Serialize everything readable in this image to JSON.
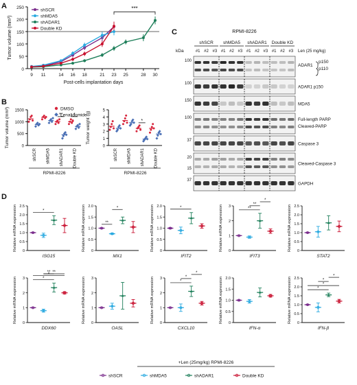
{
  "panel_labels": {
    "a": "A",
    "b": "B",
    "c": "C",
    "d": "D"
  },
  "colors": {
    "shSCR": "#7a2c8c",
    "shMDA5": "#29a9e0",
    "shADAR1": "#1e7f5a",
    "DoubleKD": "#c8102e",
    "DMSO": "#d7263d",
    "Lenalidomide": "#4a6fb5"
  },
  "chart_data": [
    {
      "id": "A",
      "type": "line",
      "xlabel": "Post-cells implantation days",
      "ylabel": "Tumor volume (mm³)",
      "ylim": [
        0,
        250
      ],
      "yticks": [
        0,
        50,
        100,
        150,
        200,
        250
      ],
      "x": [
        9,
        11,
        14,
        16,
        18,
        21,
        23,
        25,
        28,
        30
      ],
      "reference_line": 150,
      "significance": {
        "label": "***",
        "from": 23,
        "to": 30
      },
      "legend": [
        "shSCR",
        "shMDA5",
        "shADAR1",
        "Double KD"
      ],
      "series": [
        {
          "name": "shSCR",
          "key": "shSCR",
          "x": [
            9,
            11,
            14,
            16,
            18,
            21,
            23
          ],
          "y": [
            8,
            12,
            28,
            55,
            85,
            125,
            170
          ],
          "err": [
            3,
            4,
            6,
            8,
            10,
            14,
            20
          ]
        },
        {
          "name": "shMDA5",
          "key": "shMDA5",
          "x": [
            9,
            11,
            14,
            16,
            18,
            21,
            23
          ],
          "y": [
            9,
            14,
            32,
            62,
            95,
            135,
            150
          ],
          "err": [
            3,
            4,
            6,
            8,
            10,
            14,
            15
          ]
        },
        {
          "name": "shADAR1",
          "key": "shADAR1",
          "x": [
            9,
            11,
            14,
            16,
            18,
            21,
            23,
            25,
            28,
            30
          ],
          "y": [
            6,
            8,
            15,
            22,
            32,
            55,
            82,
            108,
            125,
            195
          ],
          "err": [
            2,
            3,
            4,
            5,
            6,
            8,
            10,
            10,
            14,
            16
          ]
        },
        {
          "name": "Double KD",
          "key": "DoubleKD",
          "x": [
            9,
            11,
            14,
            16,
            18,
            21,
            23
          ],
          "y": [
            7,
            10,
            22,
            38,
            60,
            100,
            172
          ],
          "err": [
            3,
            3,
            5,
            7,
            9,
            12,
            18
          ]
        }
      ]
    },
    {
      "id": "B1",
      "type": "scatter",
      "ylabel": "Tumor volume (mm³)",
      "xlabel": "RPMI-8226",
      "ylim": [
        0,
        1500
      ],
      "yticks": [
        0,
        500,
        1000,
        1500
      ],
      "categories": [
        "shSCR",
        "shMDA5",
        "shADAR1",
        "Double KD"
      ],
      "legend": [
        "DMSO",
        "Lenalidomide"
      ],
      "series": [
        {
          "name": "DMSO",
          "key": "DMSO",
          "means": [
            1120,
            1180,
            1000,
            1000
          ],
          "points": [
            [
              1000,
              1100,
              1200,
              1250,
              1050
            ],
            [
              1100,
              1200,
              1250,
              1150,
              1200
            ],
            [
              900,
              1000,
              1050,
              950,
              1100
            ],
            [
              900,
              1000,
              1100,
              950,
              1050
            ]
          ]
        },
        {
          "name": "Lenalidomide",
          "key": "Lenalidomide",
          "means": [
            880,
            1050,
            450,
            800
          ],
          "points": [
            [
              800,
              900,
              950,
              850,
              900
            ],
            [
              950,
              1050,
              1100,
              1000,
              1150
            ],
            [
              300,
              400,
              500,
              550,
              450
            ],
            [
              700,
              800,
              850,
              750,
              900
            ]
          ]
        }
      ],
      "significance": [
        {
          "category": "shADAR1",
          "label": "**"
        },
        {
          "category": "Double KD",
          "label": "*"
        }
      ]
    },
    {
      "id": "B2",
      "type": "scatter",
      "ylabel": "Tumor weight (g)",
      "xlabel": "RPMI-8226",
      "ylim": [
        0,
        5
      ],
      "yticks": [
        0,
        1,
        2,
        3,
        4,
        5
      ],
      "categories": [
        "shSCR",
        "shMDA5",
        "shADAR1",
        "Double KD"
      ],
      "series": [
        {
          "name": "DMSO",
          "key": "DMSO",
          "means": [
            2.7,
            3.5,
            2.4,
            2.4
          ],
          "points": [
            [
              2.2,
              2.6,
              3.0,
              3.4,
              2.4
            ],
            [
              3.0,
              3.4,
              3.8,
              4.2,
              3.2
            ],
            [
              2.0,
              2.4,
              2.6,
              2.8,
              2.2
            ],
            [
              1.8,
              2.2,
              2.6,
              3.0,
              2.4
            ]
          ]
        },
        {
          "name": "Lenalidomide",
          "key": "Lenalidomide",
          "means": [
            2.4,
            3.2,
            0.9,
            1.6
          ],
          "points": [
            [
              2.0,
              2.2,
              2.6,
              2.8,
              2.4
            ],
            [
              2.8,
              3.0,
              3.4,
              3.6,
              3.2
            ],
            [
              0.6,
              0.8,
              1.0,
              1.2,
              0.9
            ],
            [
              1.0,
              1.4,
              1.8,
              2.0,
              1.6
            ]
          ]
        }
      ],
      "significance": [
        {
          "category": "shADAR1",
          "label": "*"
        }
      ]
    },
    {
      "id": "D",
      "type": "scatter",
      "ylabel": "Relative mRNA expression",
      "groups": [
        "shSCR",
        "shMDA5",
        "shADAR1",
        "Double KD"
      ],
      "legend_title": "+Len (25mg/kg) RPMI-8226",
      "legend": [
        "shSCR",
        "shMDA5",
        "shADAR1",
        "Double KD"
      ],
      "panels": [
        {
          "gene": "ISG15",
          "ylim": [
            0,
            2.5
          ],
          "yticks": [
            "0",
            "0.5",
            "1.0",
            "1.5",
            "2.0",
            "2.5"
          ],
          "means": [
            1.0,
            0.85,
            1.7,
            1.4
          ],
          "err": [
            0.02,
            0.12,
            0.25,
            0.4
          ],
          "sig": [
            {
              "from": 0,
              "to": 2,
              "label": "*"
            }
          ]
        },
        {
          "gene": "MX1",
          "ylim": [
            0,
            2.0
          ],
          "yticks": [
            "0",
            "0.5",
            "1.0",
            "1.5",
            "2.0"
          ],
          "means": [
            1.0,
            0.75,
            1.35,
            1.05
          ],
          "err": [
            0.02,
            0.03,
            0.15,
            0.25
          ],
          "sig": [
            {
              "from": 0,
              "to": 1,
              "label": "**"
            },
            {
              "from": 1,
              "to": 2,
              "label": "*"
            }
          ]
        },
        {
          "gene": "IFIT2",
          "ylim": [
            0,
            2.0
          ],
          "yticks": [
            "0",
            "0.5",
            "1.0",
            "1.5",
            "2.0"
          ],
          "means": [
            1.0,
            0.9,
            1.45,
            1.1
          ],
          "err": [
            0.03,
            0.15,
            0.25,
            0.1
          ],
          "sig": [
            {
              "from": 0,
              "to": 2,
              "label": "*"
            }
          ]
        },
        {
          "gene": "IFIT3",
          "ylim": [
            0,
            3
          ],
          "yticks": [
            "0",
            "1",
            "2",
            "3"
          ],
          "means": [
            1.0,
            0.9,
            2.0,
            1.3
          ],
          "err": [
            0.02,
            0.08,
            0.5,
            0.15
          ],
          "sig": [
            {
              "from": 0,
              "to": 2,
              "label": "**"
            },
            {
              "from": 1,
              "to": 2,
              "label": "**"
            },
            {
              "from": 2,
              "to": 3,
              "label": "*"
            }
          ]
        },
        {
          "gene": "STAT2",
          "ylim": [
            0,
            2.5
          ],
          "yticks": [
            "0",
            "0.5",
            "1.0",
            "1.5",
            "2.0",
            "2.5"
          ],
          "means": [
            1.0,
            1.05,
            1.55,
            1.35
          ],
          "err": [
            0.02,
            0.3,
            0.4,
            0.3
          ],
          "sig": []
        },
        {
          "gene": "DDX60",
          "ylim": [
            0,
            3
          ],
          "yticks": [
            "0",
            "1",
            "2",
            "3"
          ],
          "means": [
            1.0,
            0.8,
            2.35,
            2.0
          ],
          "err": [
            0.02,
            0.1,
            0.3,
            0.08
          ],
          "sig": [
            {
              "from": 0,
              "to": 2,
              "label": "*"
            },
            {
              "from": 0,
              "to": 3,
              "label": "*"
            },
            {
              "from": 1,
              "to": 2,
              "label": "**"
            },
            {
              "from": 1,
              "to": 3,
              "label": "**"
            }
          ]
        },
        {
          "gene": "OASL",
          "ylim": [
            0,
            3
          ],
          "yticks": [
            "0",
            "1",
            "2",
            "3"
          ],
          "means": [
            1.0,
            1.1,
            1.8,
            1.3
          ],
          "err": [
            0.02,
            0.2,
            0.9,
            0.25
          ],
          "sig": []
        },
        {
          "gene": "CXCL10",
          "ylim": [
            0,
            3
          ],
          "yticks": [
            "0",
            "1",
            "2",
            "3"
          ],
          "means": [
            1.0,
            1.0,
            2.1,
            1.3
          ],
          "err": [
            0.02,
            0.25,
            0.35,
            0.12
          ],
          "sig": [
            {
              "from": 0,
              "to": 2,
              "label": "*"
            },
            {
              "from": 1,
              "to": 2,
              "label": "*"
            },
            {
              "from": 2,
              "to": 3,
              "label": "*"
            }
          ]
        },
        {
          "gene": "IFN-α",
          "ylim": [
            0,
            2.0
          ],
          "yticks": [
            "0",
            "0.5",
            "1.0",
            "1.5",
            "2.0"
          ],
          "means": [
            1.0,
            0.95,
            1.35,
            1.2
          ],
          "err": [
            0.02,
            0.08,
            0.2,
            0.06
          ],
          "sig": []
        },
        {
          "gene": "IFN-β",
          "ylim": [
            0,
            2.5
          ],
          "yticks": [
            "0",
            "0.5",
            "1.0",
            "1.5",
            "2.0",
            "2.5"
          ],
          "means": [
            1.0,
            0.85,
            1.55,
            1.2
          ],
          "err": [
            0.02,
            0.25,
            0.1,
            0.1
          ],
          "sig": [
            {
              "from": 0,
              "to": 2,
              "label": "*"
            },
            {
              "from": 0,
              "to": 3,
              "label": "*"
            },
            {
              "from": 1,
              "to": 2,
              "label": "*"
            },
            {
              "from": 2,
              "to": 3,
              "label": "*"
            }
          ]
        }
      ]
    }
  ],
  "western_blot": {
    "title": "RPMI-8226",
    "kda_label": "kDa",
    "treatment_label": "Len (25 mg/kg)",
    "groups": [
      "shSCR",
      "shMDA5",
      "shADAR1",
      "Double KD"
    ],
    "lanes": [
      "#1",
      "#2",
      "#3"
    ],
    "rows": [
      {
        "label": "ADAR1",
        "sublabels": [
          "p150",
          "p110"
        ],
        "marker": "100",
        "tall": true
      },
      {
        "label": "ADAR1 p150",
        "marker": "100"
      },
      {
        "label": "MDA5",
        "marker": "150"
      },
      {
        "label": "Full-length PARP",
        "label2": "Cleaved-PARP",
        "marker": "100",
        "tall": true
      },
      {
        "label": "Caspase 3",
        "marker": "37"
      },
      {
        "label": "Cleaved-Caspase 3",
        "marker": "20",
        "marker2": "15",
        "tall": true
      },
      {
        "label": "GAPDH",
        "marker": "37"
      }
    ],
    "band_intensity": [
      [
        [
          0.9,
          0.9,
          0.85
        ],
        [
          0.95,
          0.9,
          0.9
        ],
        [
          0.2,
          0.25,
          0.2
        ],
        [
          0.2,
          0.2,
          0.25
        ]
      ],
      [
        [
          0.9,
          0.85,
          0.9
        ],
        [
          0.9,
          0.95,
          0.85
        ],
        [
          0.1,
          0.1,
          0.15
        ],
        [
          0.15,
          0.1,
          0.1
        ]
      ],
      [
        [
          0.9,
          0.85,
          0.8
        ],
        [
          0.15,
          0.2,
          0.15
        ],
        [
          0.9,
          0.85,
          0.9
        ],
        [
          0.2,
          0.15,
          0.2
        ]
      ],
      [
        [
          0.5,
          0.55,
          0.5
        ],
        [
          0.5,
          0.5,
          0.55
        ],
        [
          0.9,
          0.85,
          0.9
        ],
        [
          0.6,
          0.55,
          0.6
        ]
      ],
      [
        [
          0.8,
          0.8,
          0.8
        ],
        [
          0.8,
          0.8,
          0.8
        ],
        [
          0.7,
          0.75,
          0.7
        ],
        [
          0.8,
          0.75,
          0.8
        ]
      ],
      [
        [
          0.3,
          0.3,
          0.35
        ],
        [
          0.35,
          0.3,
          0.3
        ],
        [
          0.85,
          0.8,
          0.85
        ],
        [
          0.5,
          0.5,
          0.45
        ]
      ],
      [
        [
          0.9,
          0.9,
          0.9
        ],
        [
          0.9,
          0.9,
          0.9
        ],
        [
          0.9,
          0.9,
          0.9
        ],
        [
          0.9,
          0.9,
          0.9
        ]
      ]
    ]
  }
}
